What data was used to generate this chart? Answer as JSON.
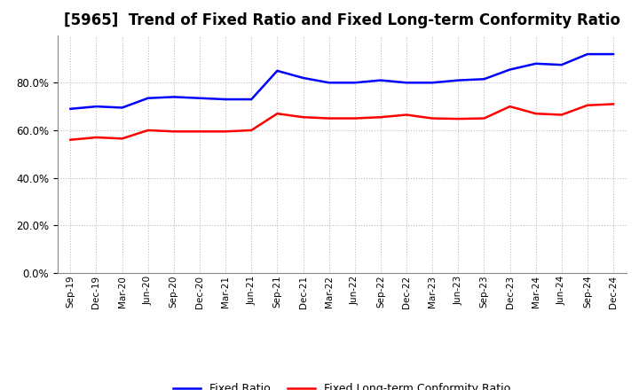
{
  "title": "[5965]  Trend of Fixed Ratio and Fixed Long-term Conformity Ratio",
  "x_labels": [
    "Sep-19",
    "Dec-19",
    "Mar-20",
    "Jun-20",
    "Sep-20",
    "Dec-20",
    "Mar-21",
    "Jun-21",
    "Sep-21",
    "Dec-21",
    "Mar-22",
    "Jun-22",
    "Sep-22",
    "Dec-22",
    "Mar-23",
    "Jun-23",
    "Sep-23",
    "Dec-23",
    "Mar-24",
    "Jun-24",
    "Sep-24",
    "Dec-24"
  ],
  "fixed_ratio": [
    0.69,
    0.7,
    0.695,
    0.735,
    0.74,
    0.735,
    0.73,
    0.73,
    0.85,
    0.82,
    0.8,
    0.8,
    0.81,
    0.8,
    0.8,
    0.81,
    0.815,
    0.855,
    0.88,
    0.875,
    0.92,
    0.92
  ],
  "fixed_lt_ratio": [
    0.56,
    0.57,
    0.565,
    0.6,
    0.595,
    0.595,
    0.595,
    0.6,
    0.67,
    0.655,
    0.65,
    0.65,
    0.655,
    0.665,
    0.65,
    0.648,
    0.65,
    0.7,
    0.67,
    0.665,
    0.705,
    0.71
  ],
  "fixed_ratio_color": "#0000FF",
  "fixed_lt_ratio_color": "#FF0000",
  "ylim": [
    0.0,
    1.0
  ],
  "yticks": [
    0.0,
    0.2,
    0.4,
    0.6,
    0.8
  ],
  "background_color": "#FFFFFF",
  "grid_color": "#AAAAAA",
  "title_fontsize": 12,
  "legend_fixed_ratio": "Fixed Ratio",
  "legend_fixed_lt_ratio": "Fixed Long-term Conformity Ratio"
}
